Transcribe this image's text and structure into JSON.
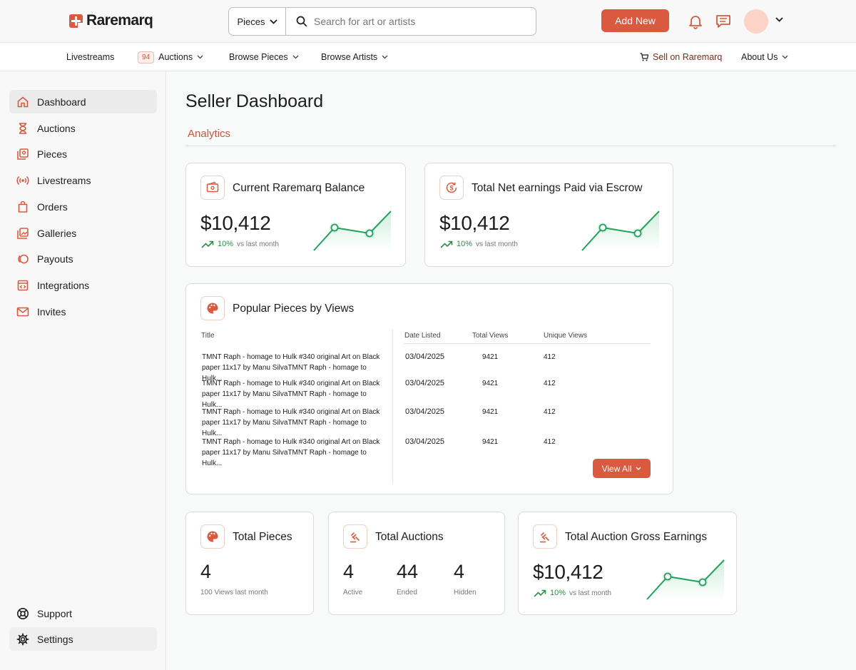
{
  "brand": {
    "name": "Raremarq",
    "accent": "#d95a3f",
    "positive": "#2f8f4a"
  },
  "search": {
    "category": "Pieces",
    "placeholder": "Search for art or artists"
  },
  "header": {
    "add_new_label": "Add New"
  },
  "nav": {
    "livestreams": "Livestreams",
    "auctions_badge": "94",
    "auctions": "Auctions",
    "browse_pieces": "Browse Pieces",
    "browse_artists": "Browse Artists",
    "sell": "Sell on Raremarq",
    "about": "About Us"
  },
  "sidebar": {
    "items": [
      {
        "label": "Dashboard",
        "icon": "home-icon"
      },
      {
        "label": "Auctions",
        "icon": "hourglass-icon"
      },
      {
        "label": "Pieces",
        "icon": "pieces-icon"
      },
      {
        "label": "Livestreams",
        "icon": "broadcast-icon"
      },
      {
        "label": "Orders",
        "icon": "shopping-bag-icon"
      },
      {
        "label": "Galleries",
        "icon": "gallery-icon"
      },
      {
        "label": "Payouts",
        "icon": "payouts-icon"
      },
      {
        "label": "Integrations",
        "icon": "integrations-icon"
      },
      {
        "label": "Invites",
        "icon": "mail-icon"
      }
    ],
    "support": "Support",
    "settings": "Settings"
  },
  "page": {
    "title": "Seller Dashboard",
    "tab": "Analytics"
  },
  "balance": {
    "title": "Current Raremarq Balance",
    "amount": "$10,412",
    "change": "10%",
    "compare": "vs last month"
  },
  "escrow": {
    "title": "Total Net earnings Paid via Escrow",
    "amount": "$10,412",
    "change": "10%",
    "compare": "vs last month"
  },
  "popular": {
    "title": "Popular Pieces by Views",
    "columns": [
      "Title",
      "Date Listed",
      "Total Views",
      "Unique Views"
    ],
    "rows": [
      {
        "title": "TMNT Raph - homage to Hulk #340 original Art on Black paper 11x17 by Manu SilvaTMNT Raph - homage to Hulk...",
        "date": "03/04/2025",
        "total": "9421",
        "unique": "412"
      },
      {
        "title": "TMNT Raph - homage to Hulk #340 original Art on Black paper 11x17 by Manu SilvaTMNT Raph - homage to Hulk...",
        "date": "03/04/2025",
        "total": "9421",
        "unique": "412"
      },
      {
        "title": "TMNT Raph - homage to Hulk #340 original Art on Black paper 11x17 by Manu SilvaTMNT Raph - homage to Hulk...",
        "date": "03/04/2025",
        "total": "9421",
        "unique": "412"
      },
      {
        "title": "TMNT Raph - homage to Hulk #340 original Art on Black paper 11x17 by Manu SilvaTMNT Raph - homage to Hulk...",
        "date": "03/04/2025",
        "total": "9421",
        "unique": "412"
      }
    ],
    "view_all": "View All"
  },
  "total_pieces": {
    "title": "Total Pieces",
    "value": "4",
    "note": "100 Views last month"
  },
  "total_auctions": {
    "title": "Total Auctions",
    "stats": [
      {
        "value": "4",
        "label": "Active"
      },
      {
        "value": "44",
        "label": "Ended"
      },
      {
        "value": "4",
        "label": "Hidden"
      }
    ]
  },
  "gross": {
    "title": "Total Auction Gross Earnings",
    "amount": "$10,412",
    "change": "10%",
    "compare": "vs last month"
  }
}
